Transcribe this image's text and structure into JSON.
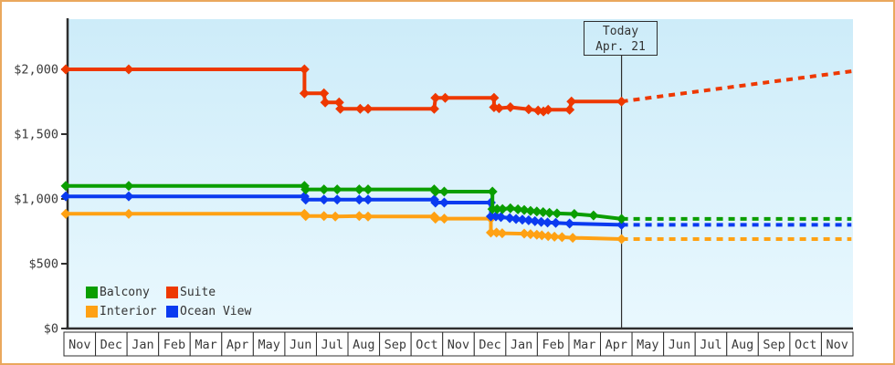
{
  "window": {
    "border_color": "#eaa85d",
    "background": "#ffffff"
  },
  "chart_data": {
    "type": "line",
    "title": "",
    "xlabel": "",
    "ylabel": "",
    "x_months": [
      "Nov",
      "Dec",
      "Jan",
      "Feb",
      "Mar",
      "Apr",
      "May",
      "Jun",
      "Jul",
      "Aug",
      "Sep",
      "Oct",
      "Nov",
      "Dec",
      "Jan",
      "Feb",
      "Mar",
      "Apr",
      "May",
      "Jun",
      "Jul",
      "Aug",
      "Sep",
      "Oct",
      "Nov"
    ],
    "y_ticks": [
      {
        "label": "$0",
        "value": 0
      },
      {
        "label": "$500",
        "value": 500
      },
      {
        "label": "$1,000",
        "value": 1000
      },
      {
        "label": "$1,500",
        "value": 1500
      },
      {
        "label": "$2,000",
        "value": 2000
      }
    ],
    "ylim": [
      0,
      2394
    ],
    "grid": false,
    "legend_position": "bottom-left",
    "plot_bg_top": "#cdecf9",
    "plot_bg_bottom": "#e9f8fe",
    "axis_color": "#2e2e2e",
    "today": {
      "line1": "Today",
      "line2": "Apr. 21",
      "month_index": 17.65
    },
    "series": [
      {
        "name": "Interior",
        "color": "#ffa113",
        "solid": [
          [
            0,
            885
          ],
          [
            2,
            885
          ],
          [
            7.58,
            885
          ],
          [
            7.62,
            868
          ],
          [
            8.2,
            868
          ],
          [
            8.56,
            864
          ],
          [
            9.32,
            868
          ],
          [
            9.6,
            864
          ],
          [
            11.7,
            864
          ],
          [
            11.74,
            848
          ],
          [
            12.02,
            848
          ],
          [
            13.5,
            848
          ],
          [
            13.5,
            740
          ],
          [
            13.68,
            740
          ],
          [
            13.86,
            735
          ],
          [
            14.56,
            732
          ],
          [
            14.76,
            728
          ],
          [
            14.96,
            724
          ],
          [
            15.12,
            719
          ],
          [
            15.32,
            713
          ],
          [
            15.52,
            709
          ],
          [
            15.76,
            705
          ],
          [
            16.1,
            700
          ],
          [
            17.65,
            690
          ]
        ],
        "projection": [
          [
            17.65,
            690
          ],
          [
            24.95,
            690
          ]
        ]
      },
      {
        "name": "Ocean View",
        "color": "#0a3af0",
        "solid": [
          [
            0,
            1020
          ],
          [
            2,
            1020
          ],
          [
            7.58,
            1020
          ],
          [
            7.62,
            995
          ],
          [
            8.2,
            995
          ],
          [
            8.62,
            995
          ],
          [
            9.32,
            995
          ],
          [
            9.6,
            995
          ],
          [
            11.7,
            995
          ],
          [
            11.74,
            972
          ],
          [
            12.02,
            972
          ],
          [
            13.5,
            972
          ],
          [
            13.5,
            865
          ],
          [
            13.66,
            865
          ],
          [
            13.82,
            860
          ],
          [
            14.1,
            852
          ],
          [
            14.3,
            845
          ],
          [
            14.5,
            840
          ],
          [
            14.7,
            835
          ],
          [
            14.9,
            828
          ],
          [
            15.1,
            822
          ],
          [
            15.3,
            818
          ],
          [
            15.56,
            815
          ],
          [
            16.0,
            810
          ],
          [
            17.65,
            800
          ]
        ],
        "projection": [
          [
            17.65,
            800
          ],
          [
            24.95,
            800
          ]
        ]
      },
      {
        "name": "Balcony",
        "color": "#0a9e00",
        "solid": [
          [
            0,
            1100
          ],
          [
            2,
            1100
          ],
          [
            7.58,
            1100
          ],
          [
            7.62,
            1073
          ],
          [
            8.2,
            1073
          ],
          [
            8.62,
            1073
          ],
          [
            9.32,
            1073
          ],
          [
            9.6,
            1073
          ],
          [
            11.7,
            1073
          ],
          [
            11.74,
            1056
          ],
          [
            12.02,
            1056
          ],
          [
            13.55,
            1056
          ],
          [
            13.55,
            922
          ],
          [
            13.7,
            922
          ],
          [
            13.87,
            922
          ],
          [
            14.12,
            928
          ],
          [
            14.36,
            920
          ],
          [
            14.56,
            915
          ],
          [
            14.76,
            908
          ],
          [
            14.96,
            903
          ],
          [
            15.16,
            898
          ],
          [
            15.36,
            893
          ],
          [
            15.6,
            888
          ],
          [
            16.15,
            884
          ],
          [
            16.76,
            872
          ],
          [
            17.65,
            846
          ]
        ],
        "projection": [
          [
            17.65,
            846
          ],
          [
            24.95,
            846
          ]
        ]
      },
      {
        "name": "Suite",
        "color": "#ee3800",
        "solid": [
          [
            0,
            2000
          ],
          [
            2,
            2000
          ],
          [
            7.58,
            2000
          ],
          [
            7.58,
            1815
          ],
          [
            8.2,
            1815
          ],
          [
            8.24,
            1745
          ],
          [
            8.68,
            1745
          ],
          [
            8.72,
            1695
          ],
          [
            9.35,
            1695
          ],
          [
            9.6,
            1695
          ],
          [
            11.7,
            1695
          ],
          [
            11.74,
            1780
          ],
          [
            12.05,
            1780
          ],
          [
            13.6,
            1780
          ],
          [
            13.6,
            1708
          ],
          [
            13.76,
            1700
          ],
          [
            14.12,
            1708
          ],
          [
            14.7,
            1692
          ],
          [
            15.0,
            1682
          ],
          [
            15.17,
            1675
          ],
          [
            15.32,
            1688
          ],
          [
            16.0,
            1688
          ],
          [
            16.06,
            1752
          ],
          [
            17.65,
            1752
          ]
        ],
        "projection": [
          [
            17.65,
            1752
          ],
          [
            24.95,
            1985
          ]
        ]
      }
    ]
  },
  "legend": {
    "items": [
      {
        "label": "Balcony",
        "color": "#0a9e00"
      },
      {
        "label": "Suite",
        "color": "#ee3800"
      },
      {
        "label": "Interior",
        "color": "#ffa113"
      },
      {
        "label": "Ocean View",
        "color": "#0a3af0"
      }
    ]
  }
}
